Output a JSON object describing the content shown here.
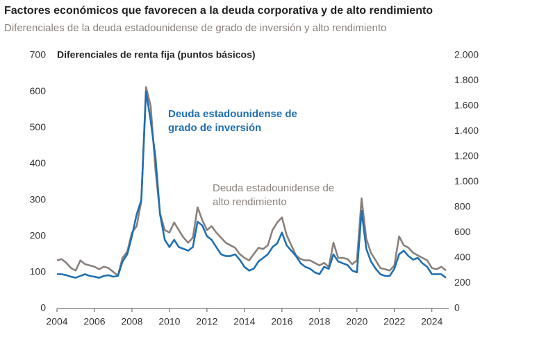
{
  "chart_data": {
    "type": "line",
    "title": "Factores económicos que favorecen a la deuda corporativa y de alto rendimiento",
    "subtitle": "Diferenciales de la deuda estadounidense de grado de inversión y alto rendimiento",
    "y_label": "Diferenciales de renta fija (puntos básicos)",
    "x": [
      2004,
      2004.25,
      2004.5,
      2004.75,
      2005,
      2005.25,
      2005.5,
      2005.75,
      2006,
      2006.25,
      2006.5,
      2006.75,
      2007,
      2007.25,
      2007.5,
      2007.75,
      2008,
      2008.25,
      2008.5,
      2008.75,
      2009,
      2009.25,
      2009.5,
      2009.75,
      2010,
      2010.25,
      2010.5,
      2010.75,
      2011,
      2011.25,
      2011.5,
      2011.75,
      2012,
      2012.25,
      2012.5,
      2012.75,
      2013,
      2013.25,
      2013.5,
      2013.75,
      2014,
      2014.25,
      2014.5,
      2014.75,
      2015,
      2015.25,
      2015.5,
      2015.75,
      2016,
      2016.25,
      2016.5,
      2016.75,
      2017,
      2017.25,
      2017.5,
      2017.75,
      2018,
      2018.25,
      2018.5,
      2018.75,
      2019,
      2019.25,
      2019.5,
      2019.75,
      2020,
      2020.25,
      2020.5,
      2020.75,
      2021,
      2021.25,
      2021.5,
      2021.75,
      2022,
      2022.25,
      2022.5,
      2022.75,
      2023,
      2023.25,
      2023.5,
      2023.75,
      2024,
      2024.25,
      2024.5,
      2024.75
    ],
    "xlim": [
      2004,
      2024.9
    ],
    "xticks": [
      2004,
      2006,
      2008,
      2010,
      2012,
      2014,
      2016,
      2018,
      2020,
      2022,
      2024
    ],
    "ylim": [
      0,
      700
    ],
    "yticks": [
      0,
      100,
      200,
      300,
      400,
      500,
      600,
      700
    ],
    "y2lim": [
      0,
      2000
    ],
    "y2ticks": [
      0,
      200,
      400,
      600,
      800,
      {
        "value": 1000,
        "label": "1.000"
      },
      {
        "value": 1200,
        "label": "1.200"
      },
      {
        "value": 1400,
        "label": "1.400"
      },
      {
        "value": 1600,
        "label": "1.600"
      },
      {
        "value": 1800,
        "label": "1.800"
      },
      {
        "value": 2000,
        "label": "2.000"
      }
    ],
    "series": [
      {
        "name": "Deuda estadounidense de grado de inversión",
        "color": "#1f6fb2",
        "values": [
          95,
          95,
          92,
          88,
          85,
          90,
          95,
          90,
          88,
          85,
          90,
          92,
          88,
          90,
          130,
          150,
          200,
          260,
          300,
          600,
          520,
          420,
          260,
          190,
          170,
          190,
          170,
          165,
          160,
          170,
          240,
          230,
          200,
          190,
          170,
          150,
          145,
          145,
          150,
          135,
          115,
          105,
          110,
          130,
          140,
          150,
          170,
          180,
          210,
          175,
          160,
          145,
          125,
          115,
          110,
          100,
          95,
          115,
          110,
          150,
          130,
          125,
          120,
          105,
          100,
          270,
          165,
          130,
          110,
          95,
          90,
          90,
          110,
          150,
          160,
          145,
          135,
          140,
          125,
          115,
          95,
          95,
          95,
          85
        ]
      },
      {
        "name": "Deuda estadounidense de alto rendimiento",
        "color": "#8a807b",
        "axis": "y2",
        "values": [
          380,
          390,
          360,
          320,
          300,
          380,
          350,
          340,
          330,
          310,
          330,
          320,
          290,
          260,
          400,
          450,
          600,
          650,
          850,
          1750,
          1600,
          1100,
          750,
          620,
          600,
          680,
          620,
          560,
          520,
          560,
          800,
          700,
          620,
          650,
          600,
          560,
          520,
          500,
          480,
          430,
          400,
          380,
          430,
          480,
          470,
          500,
          620,
          680,
          720,
          580,
          500,
          420,
          390,
          380,
          380,
          360,
          340,
          360,
          330,
          520,
          400,
          400,
          390,
          350,
          380,
          870,
          550,
          440,
          380,
          320,
          310,
          300,
          340,
          570,
          500,
          480,
          440,
          420,
          400,
          380,
          320,
          310,
          330,
          300
        ]
      }
    ]
  }
}
